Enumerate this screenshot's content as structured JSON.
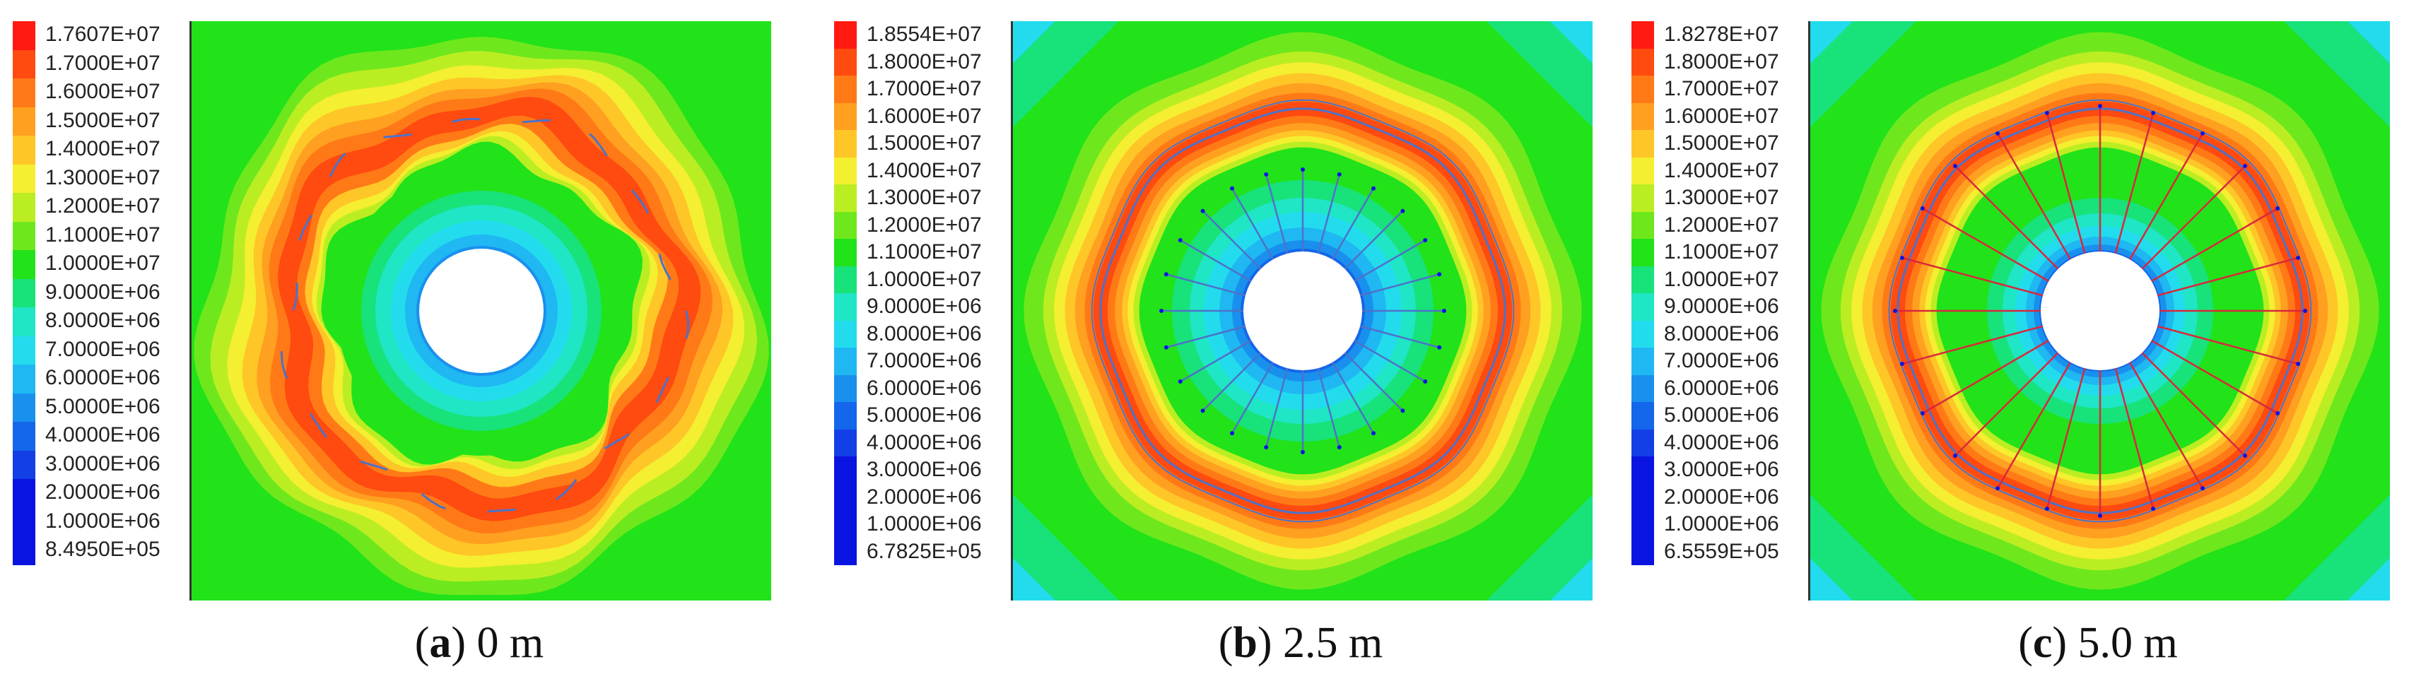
{
  "colors": {
    "red": "#ff1a12",
    "redorange": "#ff4a10",
    "orange": "#ff7a16",
    "lightorange": "#ffa020",
    "yelloworange": "#ffc628",
    "yellow": "#f4ef30",
    "yellowgreen": "#bbee22",
    "limegreen": "#6ee81c",
    "green": "#22e21a",
    "cyangreen": "#18e27a",
    "cyan1": "#1fe6c4",
    "cyan2": "#22dcee",
    "skyblue": "#1fb8f2",
    "blue1": "#1990ee",
    "blue2": "#1466ea",
    "deepblue": "#1240e6",
    "navy": "#0a14e0",
    "bolt": "#d8283c",
    "liner": "#4d72c8",
    "hole": "#ffffff"
  },
  "panels": [
    {
      "caption": {
        "letter": "a",
        "text": ") 0 m",
        "prefix": "("
      },
      "legend": [
        "1.7607E+07",
        "1.7000E+07",
        "1.6000E+07",
        "1.5000E+07",
        "1.4000E+07",
        "1.3000E+07",
        "1.2000E+07",
        "1.1000E+07",
        "1.0000E+07",
        "9.0000E+06",
        "8.0000E+06",
        "7.0000E+06",
        "6.0000E+06",
        "5.0000E+06",
        "4.0000E+06",
        "3.0000E+06",
        "2.0000E+06",
        "1.0000E+06",
        "8.4950E+05"
      ],
      "bolts": false
    },
    {
      "caption": {
        "letter": "b",
        "text": ") 2.5 m",
        "prefix": "("
      },
      "legend": [
        "1.8554E+07",
        "1.8000E+07",
        "1.7000E+07",
        "1.6000E+07",
        "1.5000E+07",
        "1.4000E+07",
        "1.3000E+07",
        "1.2000E+07",
        "1.1000E+07",
        "1.0000E+07",
        "9.0000E+06",
        "8.0000E+06",
        "7.0000E+06",
        "6.0000E+06",
        "5.0000E+06",
        "4.0000E+06",
        "3.0000E+06",
        "2.0000E+06",
        "1.0000E+06",
        "6.7825E+05"
      ],
      "bolts": "short"
    },
    {
      "caption": {
        "letter": "c",
        "text": ") 5.0 m",
        "prefix": "("
      },
      "legend": [
        "1.8278E+07",
        "1.8000E+07",
        "1.7000E+07",
        "1.6000E+07",
        "1.5000E+07",
        "1.4000E+07",
        "1.3000E+07",
        "1.2000E+07",
        "1.1000E+07",
        "1.0000E+07",
        "9.0000E+06",
        "8.0000E+06",
        "7.0000E+06",
        "6.0000E+06",
        "5.0000E+06",
        "4.0000E+06",
        "3.0000E+06",
        "2.0000E+06",
        "1.0000E+06",
        "6.5559E+05"
      ],
      "bolts": "long"
    }
  ]
}
